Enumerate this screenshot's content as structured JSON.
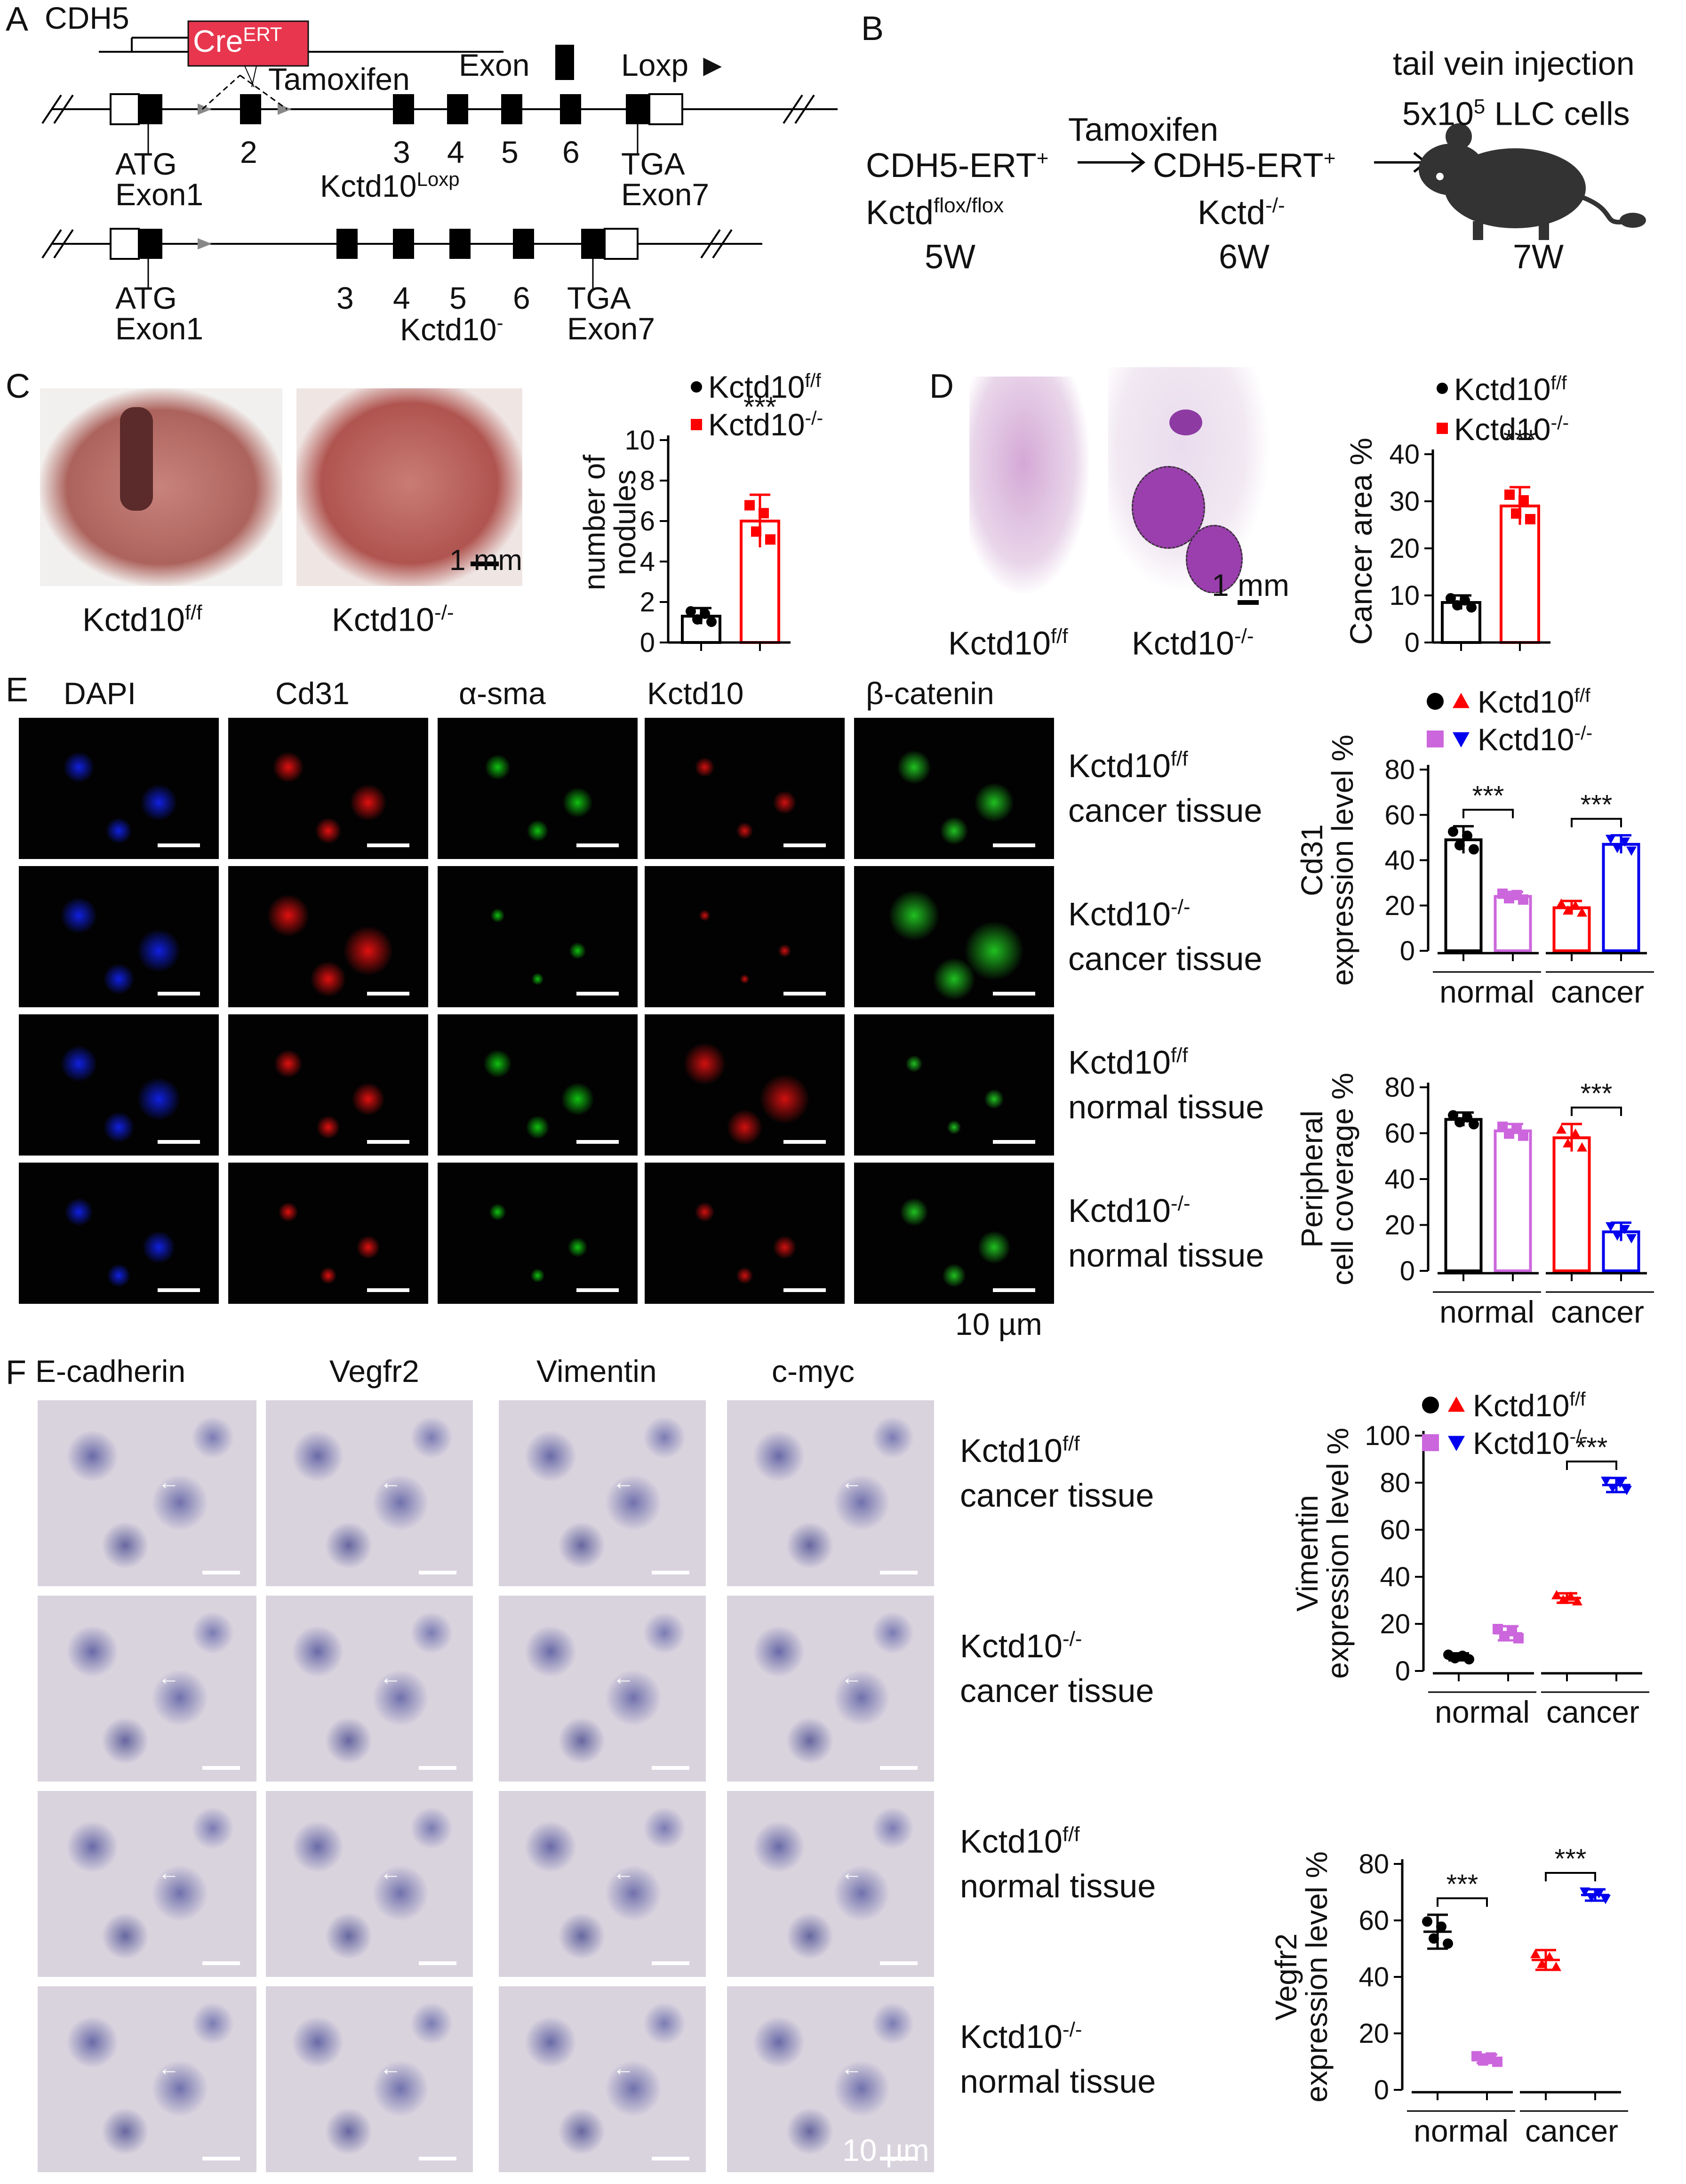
{
  "figure": {
    "panel_labels": [
      "A",
      "B",
      "C",
      "D",
      "E",
      "F"
    ]
  },
  "panelA": {
    "cdh5": "CDH5",
    "cre_main": "Cre",
    "cre_sup": "ERT",
    "tamoxifen": "Tamoxifen",
    "exon_legend": "Exon",
    "loxp_legend": "Loxp ►",
    "atg1": "ATG",
    "exon1": "Exon1",
    "ex2": "2",
    "ex3": "3",
    "ex4": "4",
    "ex5": "5",
    "ex6": "6",
    "tga1": "TGA",
    "exon7": "Exon7",
    "loxp_allele_main": "Kctd10",
    "loxp_allele_sup": "Loxp",
    "atg2": "ATG",
    "exon1b": "Exon1",
    "ex3b": "3",
    "ex4b": "4",
    "ex5b": "5",
    "ex6b": "6",
    "tga2": "TGA",
    "exon7b": "Exon7",
    "ko_allele_main": "Kctd10",
    "ko_allele_sup": "-"
  },
  "panelB": {
    "tail": "tail vein injection",
    "cells_pre": "5x10",
    "cells_sup": "5",
    "cells_post": " LLC cells",
    "tamoxifen": "Tamoxifen",
    "g1_main": "CDH5-ERT",
    "g1_sup": "+",
    "g1b_main": "Kctd",
    "g1b_sup": "flox/flox",
    "g2_main": "CDH5-ERT",
    "g2_sup": "+",
    "g2b_main": "Kctd",
    "g2b_sup": "-/-",
    "w1": "5W",
    "w2": "6W",
    "w3": "7W"
  },
  "panelC": {
    "img1_label_main": "Kctd10",
    "img1_label_sup": "f/f",
    "img2_label_main": "Kctd10",
    "img2_label_sup": "-/-",
    "scale": "1 mm",
    "legend1_main": "Kctd10",
    "legend1_sup": "f/f",
    "legend2_main": "Kctd10",
    "legend2_sup": "-/-",
    "ylabel1": "number of",
    "ylabel2": "nodules",
    "sig": "***",
    "ticks": [
      "0",
      "2",
      "4",
      "6",
      "8",
      "10"
    ]
  },
  "panelD": {
    "img1_label_main": "Kctd10",
    "img1_label_sup": "f/f",
    "img2_label_main": "Kctd10",
    "img2_label_sup": "-/-",
    "scale": "1 mm",
    "legend1_main": "Kctd10",
    "legend1_sup": "f/f",
    "legend2_main": "Kctd10",
    "legend2_sup": "-/-",
    "ylabel": "Cancer area %",
    "sig": "***",
    "ticks": [
      "0",
      "10",
      "20",
      "30",
      "40"
    ]
  },
  "panelE": {
    "columns": [
      "DAPI",
      "Cd31",
      "α-sma",
      "Kctd10",
      "β-catenin"
    ],
    "rows": [
      {
        "geno": "Kctd10",
        "sup": "f/f",
        "tissue": "cancer tissue"
      },
      {
        "geno": "Kctd10",
        "sup": "-/-",
        "tissue": "cancer tissue"
      },
      {
        "geno": "Kctd10",
        "sup": "f/f",
        "tissue": "normal tissue"
      },
      {
        "geno": "Kctd10",
        "sup": "-/-",
        "tissue": "normal tissue"
      }
    ],
    "scale": "10 µm",
    "legend1_main": "Kctd10",
    "legend1_sup": "f/f",
    "legend2_main": "Kctd10",
    "legend2_sup": "-/-",
    "chart1_ylabel1": "Cd31",
    "chart1_ylabel2": "expression level %",
    "chart1_ticks": [
      "0",
      "20",
      "40",
      "60",
      "80"
    ],
    "chart2_ylabel1": "Peripheral",
    "chart2_ylabel2": "cell coverage %",
    "chart2_ticks": [
      "0",
      "20",
      "40",
      "60",
      "80"
    ],
    "group_normal": "normal",
    "group_cancer": "cancer",
    "sig": "***"
  },
  "panelF": {
    "columns": [
      "E-cadherin",
      "Vegfr2",
      "Vimentin",
      "c-myc"
    ],
    "rows": [
      {
        "geno": "Kctd10",
        "sup": "f/f",
        "tissue": "cancer tissue"
      },
      {
        "geno": "Kctd10",
        "sup": "-/-",
        "tissue": "cancer tissue"
      },
      {
        "geno": "Kctd10",
        "sup": "f/f",
        "tissue": "normal tissue"
      },
      {
        "geno": "Kctd10",
        "sup": "-/-",
        "tissue": "normal tissue"
      }
    ],
    "scale": "10 µm",
    "legend1_main": "Kctd10",
    "legend1_sup": "f/f",
    "legend2_main": "Kctd10",
    "legend2_sup": "-/-",
    "chart1_ylabel1": "Vimentin",
    "chart1_ylabel2": "expression level %",
    "chart1_ticks": [
      "0",
      "20",
      "40",
      "60",
      "80",
      "100"
    ],
    "chart2_ylabel1": "Vegfr2",
    "chart2_ylabel2": "expression level %",
    "chart2_ticks": [
      "0",
      "20",
      "40",
      "60",
      "80"
    ],
    "group_normal": "normal",
    "group_cancer": "cancer",
    "sig": "***"
  },
  "colors": {
    "ff": "#000000",
    "ko": "#ff0000",
    "ff_normal": "#000000",
    "ko_normal": "#cc66dd",
    "ff_cancer": "#ff0000",
    "ko_cancer": "#0000ee",
    "dapi": "#1020e0",
    "cd31": "#e01010",
    "asma": "#10c010",
    "kctd10": "#d01010",
    "bcat": "#20c020",
    "ihc": "#c07a3a"
  },
  "chart_data": [
    {
      "type": "bar",
      "panel": "C",
      "categories": [
        "Kctd10f/f",
        "Kctd10-/-"
      ],
      "values": [
        1.3,
        6.0
      ],
      "errors": [
        0.4,
        1.3
      ],
      "ylabel": "number of nodules",
      "ylim": [
        0,
        10
      ],
      "significance": "***"
    },
    {
      "type": "bar",
      "panel": "D",
      "categories": [
        "Kctd10f/f",
        "Kctd10-/-"
      ],
      "values": [
        8.5,
        29
      ],
      "errors": [
        1.5,
        4
      ],
      "ylabel": "Cancer area %",
      "ylim": [
        0,
        40
      ],
      "significance": "***"
    },
    {
      "type": "bar",
      "panel": "E",
      "groups": [
        "normal",
        "cancer"
      ],
      "categories": [
        "normal Kctd10f/f",
        "normal Kctd10-/-",
        "cancer Kctd10f/f",
        "cancer Kctd10-/-"
      ],
      "values": [
        49,
        24,
        19,
        47
      ],
      "errors": [
        6,
        2,
        3,
        4
      ],
      "ylabel": "Cd31 expression level %",
      "ylim": [
        0,
        80
      ]
    },
    {
      "type": "bar",
      "panel": "E",
      "groups": [
        "normal",
        "cancer"
      ],
      "categories": [
        "normal Kctd10f/f",
        "normal Kctd10-/-",
        "cancer Kctd10f/f",
        "cancer Kctd10-/-"
      ],
      "values": [
        66,
        61,
        58,
        17
      ],
      "errors": [
        3,
        3,
        6,
        4
      ],
      "ylabel": "Peripheral cell coverage %",
      "ylim": [
        0,
        80
      ]
    },
    {
      "type": "scatter",
      "panel": "F",
      "groups": [
        "normal",
        "cancer"
      ],
      "categories": [
        "normal Kctd10f/f",
        "normal Kctd10-/-",
        "cancer Kctd10f/f",
        "cancer Kctd10-/-"
      ],
      "values": [
        6,
        16,
        31,
        79
      ],
      "errors": [
        1.5,
        3,
        2,
        3
      ],
      "ylabel": "Vimentin expression level %",
      "ylim": [
        0,
        100
      ]
    },
    {
      "type": "scatter",
      "panel": "F",
      "groups": [
        "normal",
        "cancer"
      ],
      "categories": [
        "normal Kctd10f/f",
        "normal Kctd10-/-",
        "cancer Kctd10f/f",
        "cancer Kctd10-/-"
      ],
      "values": [
        56,
        11,
        46,
        69
      ],
      "errors": [
        6,
        1.5,
        3.5,
        2
      ],
      "ylabel": "Vegfr2 expression level %",
      "ylim": [
        0,
        80
      ]
    }
  ]
}
